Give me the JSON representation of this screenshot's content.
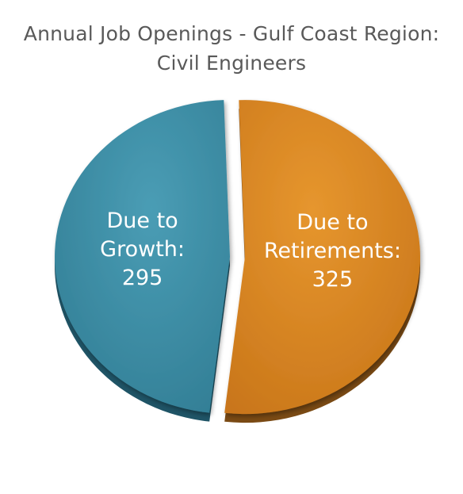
{
  "chart_data": {
    "type": "pie",
    "title": [
      "Annual Job Openings - Gulf Coast Region:",
      "Civil Engineers"
    ],
    "slices": [
      {
        "label_lines": [
          "Due to",
          "Retirements:"
        ],
        "value": 325,
        "value_text": "325",
        "color": "#D4821F",
        "shade": "#7A4A14",
        "exploded": true
      },
      {
        "label_lines": [
          "Due to",
          "Growth:"
        ],
        "value": 295,
        "value_text": "295",
        "color": "#3B8DA5",
        "shade": "#1F5466",
        "exploded": false
      }
    ]
  }
}
